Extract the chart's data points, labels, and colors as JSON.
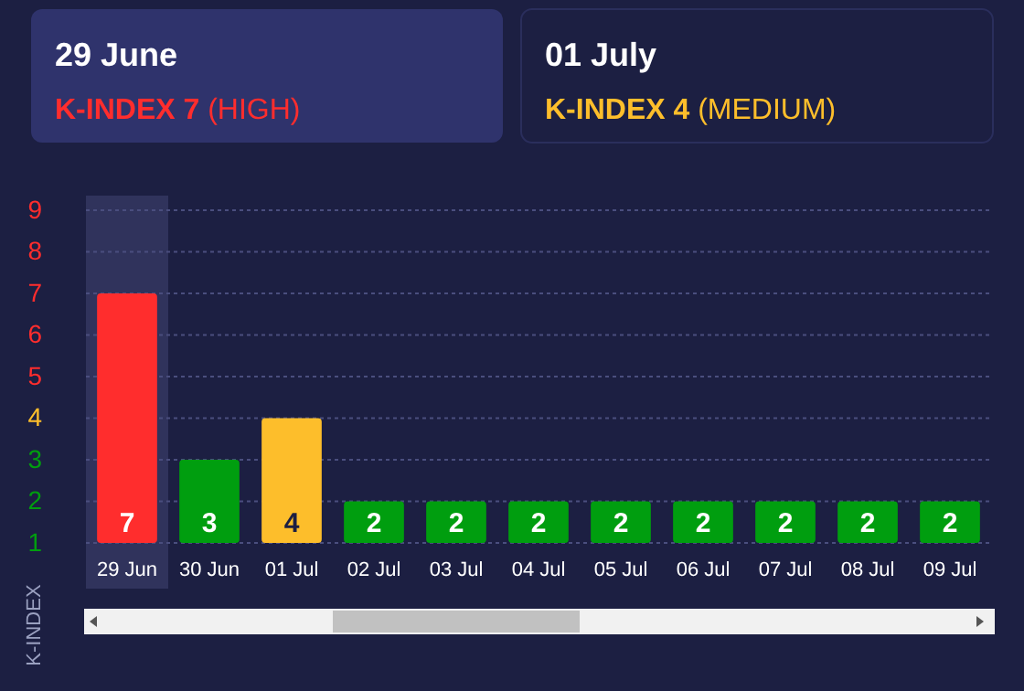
{
  "chart_data": {
    "type": "bar",
    "categories": [
      "29 Jun",
      "30 Jun",
      "01 Jul",
      "02 Jul",
      "03 Jul",
      "04 Jul",
      "05 Jul",
      "06 Jul",
      "07 Jul",
      "08 Jul",
      "09 Jul"
    ],
    "values": [
      7,
      3,
      4,
      2,
      2,
      2,
      2,
      2,
      2,
      2,
      2
    ],
    "colors": [
      "#ff2d2d",
      "#009e0f",
      "#fdbe2b",
      "#009e0f",
      "#009e0f",
      "#009e0f",
      "#009e0f",
      "#009e0f",
      "#009e0f",
      "#009e0f",
      "#009e0f"
    ],
    "ylabel": "K-INDEX",
    "ylim": [
      1,
      9
    ],
    "yticks": [
      1,
      2,
      3,
      4,
      5,
      6,
      7,
      8,
      9
    ],
    "grid": "y",
    "data_labels": true,
    "bands": [
      {
        "axis": "x",
        "from": "29 Jun",
        "to": "29 Jun",
        "color": "#30335c"
      }
    ],
    "annotations": [
      "29 June",
      "K-INDEX 7 (HIGH)",
      "01 July",
      "K-INDEX 4 (MEDIUM)"
    ]
  }
}
